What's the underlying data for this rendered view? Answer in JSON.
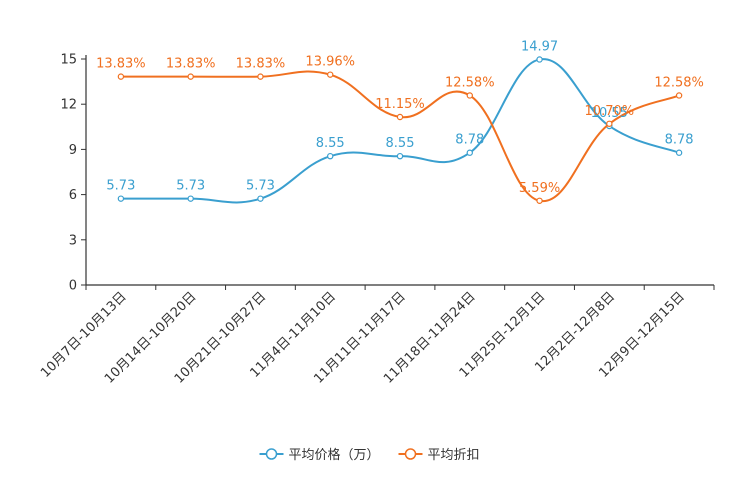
{
  "chart_data": {
    "type": "line",
    "title": "",
    "xlabel": "",
    "ylabel": "",
    "ylim": [
      0,
      15
    ],
    "yticks": [
      0,
      3,
      6,
      9,
      12,
      15
    ],
    "legend_position": "bottom-center",
    "grid": false,
    "smooth": true,
    "categories": [
      "10月7日-10月13日",
      "10月14日-10月20日",
      "10月21日-10月27日",
      "11月4日-11月10日",
      "11月11日-11月17日",
      "11月18日-11月24日",
      "11月25日-12月1日",
      "12月2日-12月8日",
      "12月9日-12月15日"
    ],
    "series": [
      {
        "name": "平均价格（万）",
        "color": "#3a9fcf",
        "values": [
          5.73,
          5.73,
          5.73,
          8.55,
          8.55,
          8.78,
          14.97,
          10.55,
          8.78
        ],
        "labels": [
          "5.73",
          "5.73",
          "5.73",
          "8.55",
          "8.55",
          "8.78",
          "14.97",
          "10.55",
          "8.78"
        ]
      },
      {
        "name": "平均折扣",
        "color": "#f07020",
        "values": [
          13.83,
          13.83,
          13.83,
          13.96,
          11.15,
          12.58,
          5.59,
          10.7,
          12.58
        ],
        "labels": [
          "13.83%",
          "13.83%",
          "13.83%",
          "13.96%",
          "11.15%",
          "12.58%",
          "5.59%",
          "10.70%",
          "12.58%"
        ]
      }
    ]
  }
}
